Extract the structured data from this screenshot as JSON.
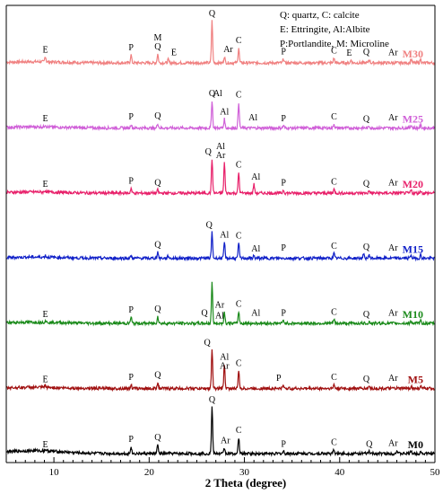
{
  "chart_data": {
    "type": "line",
    "title": "",
    "xlabel": "2 Theta (degree)",
    "ylabel": "",
    "xlim": [
      5,
      50
    ],
    "xticks": [
      "10",
      "20",
      "30",
      "40",
      "50"
    ],
    "xtick_values": [
      10,
      20,
      30,
      40,
      50
    ],
    "legend": [
      "Q: quartz, C: calcite",
      "E: Ettringite, Al:Albite",
      "P:Portlandite, M: Microline"
    ],
    "legend_position": "top-right",
    "grid": false,
    "series": [
      {
        "name": "M30",
        "color": "#f08080",
        "peaks": [
          {
            "x": 9.1,
            "h": 0.35
          },
          {
            "x": 18.1,
            "h": 0.5
          },
          {
            "x": 20.9,
            "h": 0.55
          },
          {
            "x": 22.0,
            "h": 0.2
          },
          {
            "x": 26.6,
            "h": 2.6
          },
          {
            "x": 27.9,
            "h": 0.4
          },
          {
            "x": 29.4,
            "h": 0.95
          },
          {
            "x": 34.1,
            "h": 0.25
          },
          {
            "x": 39.4,
            "h": 0.3
          },
          {
            "x": 41.2,
            "h": 0.18
          },
          {
            "x": 43.1,
            "h": 0.22
          },
          {
            "x": 47.5,
            "h": 0.25
          },
          {
            "x": 48.5,
            "h": 0.25
          }
        ],
        "labels": [
          {
            "text": "E",
            "x": 9.1
          },
          {
            "text": "P",
            "x": 18.1
          },
          {
            "text": "M",
            "x": 20.9,
            "dy": -10
          },
          {
            "text": "Q",
            "x": 20.9
          },
          {
            "text": "E",
            "x": 22.6
          },
          {
            "text": "Q",
            "x": 26.6
          },
          {
            "text": "Ar",
            "x": 28.3
          },
          {
            "text": "C",
            "x": 29.4
          },
          {
            "text": "P",
            "x": 34.1
          },
          {
            "text": "C",
            "x": 39.4
          },
          {
            "text": "E",
            "x": 41.0
          },
          {
            "text": "Q",
            "x": 42.8
          },
          {
            "text": "Ar",
            "x": 45.6
          }
        ]
      },
      {
        "name": "M25",
        "color": "#d060d8",
        "peaks": [
          {
            "x": 9.1,
            "h": 0.15
          },
          {
            "x": 18.1,
            "h": 0.25
          },
          {
            "x": 20.9,
            "h": 0.3
          },
          {
            "x": 26.6,
            "h": 1.7
          },
          {
            "x": 27.9,
            "h": 0.55
          },
          {
            "x": 29.4,
            "h": 1.6
          },
          {
            "x": 34.1,
            "h": 0.15
          },
          {
            "x": 39.4,
            "h": 0.25
          },
          {
            "x": 43.1,
            "h": 0.12
          },
          {
            "x": 47.5,
            "h": 0.2
          },
          {
            "x": 48.5,
            "h": 0.18
          }
        ],
        "labels": [
          {
            "text": "E",
            "x": 9.1
          },
          {
            "text": "P",
            "x": 18.1
          },
          {
            "text": "Q",
            "x": 20.9
          },
          {
            "text": "Q",
            "x": 26.6
          },
          {
            "text": "Al",
            "x": 27.2
          },
          {
            "text": "Al",
            "x": 27.9
          },
          {
            "text": "C",
            "x": 29.4
          },
          {
            "text": "Al",
            "x": 30.9
          },
          {
            "text": "P",
            "x": 34.1
          },
          {
            "text": "C",
            "x": 39.4
          },
          {
            "text": "Q",
            "x": 42.8
          },
          {
            "text": "Ar",
            "x": 45.6
          }
        ]
      },
      {
        "name": "M20",
        "color": "#e8206a",
        "peaks": [
          {
            "x": 9.1,
            "h": 0.1
          },
          {
            "x": 18.1,
            "h": 0.3
          },
          {
            "x": 20.9,
            "h": 0.2
          },
          {
            "x": 26.6,
            "h": 2.1
          },
          {
            "x": 27.9,
            "h": 1.9
          },
          {
            "x": 29.4,
            "h": 1.3
          },
          {
            "x": 31.0,
            "h": 0.55
          },
          {
            "x": 34.1,
            "h": 0.2
          },
          {
            "x": 39.4,
            "h": 0.25
          },
          {
            "x": 43.1,
            "h": 0.15
          },
          {
            "x": 47.5,
            "h": 0.2
          },
          {
            "x": 48.5,
            "h": 0.15
          }
        ],
        "labels": [
          {
            "text": "E",
            "x": 9.1
          },
          {
            "text": "P",
            "x": 18.1
          },
          {
            "text": "Q",
            "x": 20.9
          },
          {
            "text": "Q",
            "x": 26.2
          },
          {
            "text": "Ar",
            "x": 27.5
          },
          {
            "text": "Al",
            "x": 27.5,
            "dy": -10
          },
          {
            "text": "C",
            "x": 29.4
          },
          {
            "text": "Al",
            "x": 31.2
          },
          {
            "text": "P",
            "x": 34.1
          },
          {
            "text": "C",
            "x": 39.4
          },
          {
            "text": "Q",
            "x": 42.8
          },
          {
            "text": "Ar",
            "x": 45.6
          }
        ]
      },
      {
        "name": "M15",
        "color": "#1020c8",
        "peaks": [
          {
            "x": 9.1,
            "h": 0.1
          },
          {
            "x": 18.1,
            "h": 0.15
          },
          {
            "x": 20.9,
            "h": 0.4
          },
          {
            "x": 22.0,
            "h": 0.15
          },
          {
            "x": 26.6,
            "h": 1.6
          },
          {
            "x": 27.9,
            "h": 1.0
          },
          {
            "x": 29.4,
            "h": 0.95
          },
          {
            "x": 31.0,
            "h": 0.15
          },
          {
            "x": 39.4,
            "h": 0.3
          },
          {
            "x": 42.5,
            "h": 0.25
          },
          {
            "x": 43.1,
            "h": 0.2
          },
          {
            "x": 47.5,
            "h": 0.2
          },
          {
            "x": 48.5,
            "h": 0.2
          }
        ],
        "labels": [
          {
            "text": "Q",
            "x": 26.3
          },
          {
            "text": "C",
            "x": 29.4
          },
          {
            "text": "Al",
            "x": 27.9
          },
          {
            "text": "Q",
            "x": 20.9
          },
          {
            "text": "Al",
            "x": 31.2
          },
          {
            "text": "P",
            "x": 34.1
          },
          {
            "text": "C",
            "x": 39.4
          },
          {
            "text": "Q",
            "x": 42.8
          },
          {
            "text": "Ar",
            "x": 45.6
          }
        ]
      },
      {
        "name": "M10",
        "color": "#1a8a1a",
        "peaks": [
          {
            "x": 9.1,
            "h": 0.1
          },
          {
            "x": 18.1,
            "h": 0.4
          },
          {
            "x": 20.9,
            "h": 0.45
          },
          {
            "x": 26.6,
            "h": 2.5
          },
          {
            "x": 27.9,
            "h": 0.7
          },
          {
            "x": 29.4,
            "h": 0.75
          },
          {
            "x": 34.1,
            "h": 0.2
          },
          {
            "x": 39.4,
            "h": 0.25
          },
          {
            "x": 43.1,
            "h": 0.1
          },
          {
            "x": 47.5,
            "h": 0.15
          },
          {
            "x": 48.5,
            "h": 0.15
          }
        ],
        "labels": [
          {
            "text": "E",
            "x": 9.1
          },
          {
            "text": "P",
            "x": 18.1
          },
          {
            "text": "Q",
            "x": 20.9
          },
          {
            "text": "Q",
            "x": 25.8
          },
          {
            "text": "Ar",
            "x": 27.4
          },
          {
            "text": "Al",
            "x": 27.4,
            "dy": 12
          },
          {
            "text": "C",
            "x": 29.4
          },
          {
            "text": "Al",
            "x": 31.2
          },
          {
            "text": "P",
            "x": 34.1
          },
          {
            "text": "C",
            "x": 39.4
          },
          {
            "text": "Q",
            "x": 42.8
          },
          {
            "text": "Ar",
            "x": 45.6
          }
        ]
      },
      {
        "name": "M5",
        "color": "#a01010",
        "peaks": [
          {
            "x": 9.1,
            "h": 0.1
          },
          {
            "x": 18.1,
            "h": 0.25
          },
          {
            "x": 20.9,
            "h": 0.4
          },
          {
            "x": 26.6,
            "h": 2.4
          },
          {
            "x": 27.9,
            "h": 1.5
          },
          {
            "x": 29.4,
            "h": 1.1
          },
          {
            "x": 34.1,
            "h": 0.2
          },
          {
            "x": 39.4,
            "h": 0.25
          },
          {
            "x": 43.1,
            "h": 0.15
          },
          {
            "x": 47.5,
            "h": 0.15
          },
          {
            "x": 48.5,
            "h": 0.15
          }
        ],
        "labels": [
          {
            "text": "E",
            "x": 9.1
          },
          {
            "text": "P",
            "x": 18.1
          },
          {
            "text": "Q",
            "x": 20.9
          },
          {
            "text": "Q",
            "x": 26.1
          },
          {
            "text": "Al",
            "x": 27.9
          },
          {
            "text": "Ar",
            "x": 27.9,
            "dy": 10
          },
          {
            "text": "C",
            "x": 29.4
          },
          {
            "text": "P",
            "x": 33.6
          },
          {
            "text": "C",
            "x": 39.4
          },
          {
            "text": "Q",
            "x": 42.8
          },
          {
            "text": "Ar",
            "x": 45.6
          }
        ]
      },
      {
        "name": "M0",
        "color": "#000000",
        "peaks": [
          {
            "x": 9.1,
            "h": 0.1
          },
          {
            "x": 18.1,
            "h": 0.45
          },
          {
            "x": 20.9,
            "h": 0.55
          },
          {
            "x": 26.6,
            "h": 2.9
          },
          {
            "x": 27.9,
            "h": 0.35
          },
          {
            "x": 29.4,
            "h": 1.0
          },
          {
            "x": 34.1,
            "h": 0.15
          },
          {
            "x": 39.4,
            "h": 0.25
          },
          {
            "x": 43.1,
            "h": 0.15
          },
          {
            "x": 46.0,
            "h": 0.2
          },
          {
            "x": 47.5,
            "h": 0.2
          },
          {
            "x": 48.5,
            "h": 0.15
          }
        ],
        "labels": [
          {
            "text": "E",
            "x": 9.1
          },
          {
            "text": "P",
            "x": 18.1
          },
          {
            "text": "Q",
            "x": 20.9
          },
          {
            "text": "Q",
            "x": 26.6
          },
          {
            "text": "Ar",
            "x": 28.0
          },
          {
            "text": "C",
            "x": 29.4
          },
          {
            "text": "P",
            "x": 34.1
          },
          {
            "text": "C",
            "x": 39.4
          },
          {
            "text": "Q",
            "x": 43.1
          },
          {
            "text": "Ar",
            "x": 45.6
          }
        ]
      }
    ]
  }
}
